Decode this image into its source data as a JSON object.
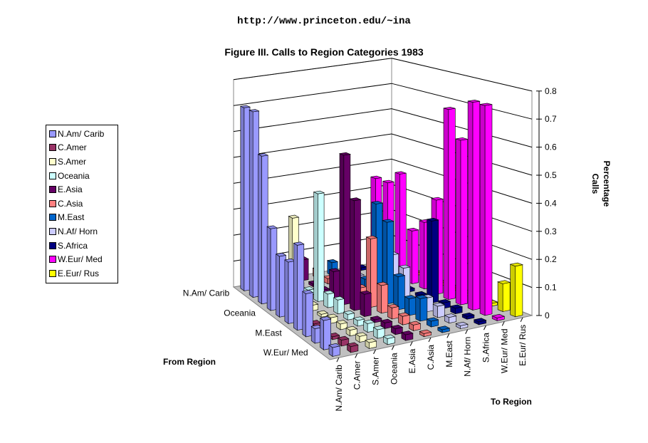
{
  "header": {
    "url": "http://www.princeton.edu/~ina"
  },
  "chart_data": {
    "type": "bar3d",
    "title": "Figure III. Calls to Region Categories 1983",
    "xlabel": "To Region",
    "depth_label": "From Region",
    "ylabel": "Percentage Calls",
    "ylim": [
      0,
      0.8
    ],
    "yticks": [
      "0",
      "0.1",
      "0.2",
      "0.3",
      "0.4",
      "0.5",
      "0.6",
      "0.7",
      "0.8"
    ],
    "categories": [
      "N.Am/ Carib",
      "C.Amer",
      "S.Amer",
      "Oceania",
      "E.Asia",
      "C.Asia",
      "M.East",
      "N.Af/ Horn",
      "S.Africa",
      "W.Eur/ Med",
      "E.Eur/ Rus"
    ],
    "depth_tick_labels": [
      "N.Am/ Carib",
      "Oceania",
      "M.East",
      "W.Eur/ Med"
    ],
    "legend": [
      "N.Am/ Carib",
      "C.Amer",
      "S.Amer",
      "Oceania",
      "E.Asia",
      "C.Asia",
      "M.East",
      "N.Af/ Horn",
      "S.Africa",
      "W.Eur/ Med",
      "E.Eur/ Rus"
    ],
    "colors": [
      "#9999FF",
      "#993366",
      "#FFFFCC",
      "#CCFFFF",
      "#660066",
      "#FF8080",
      "#0066CC",
      "#CCCCFF",
      "#000080",
      "#FF00FF",
      "#FFFF00"
    ],
    "rows_from": [
      "N.Am/ Carib",
      "C.Amer",
      "S.Amer",
      "Oceania",
      "E.Asia",
      "C.Asia",
      "M.East",
      "N.Af/ Horn",
      "S.Africa",
      "W.Eur/ Med",
      "E.Eur/ Rus"
    ],
    "values": [
      [
        0.7,
        0.01,
        0.01,
        0.01,
        0.08,
        0.03,
        0.05,
        0.01,
        0.01,
        0.35,
        0.01
      ],
      [
        0.7,
        0.18,
        0.01,
        0.02,
        0.01,
        0.02,
        0.02,
        0.01,
        0.01,
        0.35,
        0.01
      ],
      [
        0.55,
        0.01,
        0.3,
        0.02,
        0.01,
        0.01,
        0.04,
        0.02,
        0.01,
        0.4,
        0.01
      ],
      [
        0.3,
        0.01,
        0.02,
        0.4,
        0.1,
        0.02,
        0.05,
        0.03,
        0.01,
        0.2,
        0.01
      ],
      [
        0.22,
        0.01,
        0.02,
        0.05,
        0.55,
        0.05,
        0.35,
        0.15,
        0.01,
        0.25,
        0.01
      ],
      [
        0.22,
        0.01,
        0.01,
        0.05,
        0.4,
        0.25,
        0.3,
        0.12,
        0.01,
        0.35,
        0.01
      ],
      [
        0.3,
        0.01,
        0.02,
        0.02,
        0.08,
        0.1,
        0.12,
        0.02,
        0.3,
        0.7,
        0.01
      ],
      [
        0.15,
        0.01,
        0.02,
        0.02,
        0.01,
        0.04,
        0.06,
        0.05,
        0.02,
        0.6,
        0.01
      ],
      [
        0.05,
        0.01,
        0.02,
        0.03,
        0.02,
        0.03,
        0.08,
        0.04,
        0.02,
        0.75,
        0.01
      ],
      [
        0.1,
        0.02,
        0.02,
        0.03,
        0.02,
        0.02,
        0.02,
        0.02,
        0.01,
        0.75,
        0.1
      ],
      [
        0.03,
        0.02,
        0.02,
        0.02,
        0.02,
        0.01,
        0.01,
        0.01,
        0.01,
        0.01,
        0.18
      ]
    ]
  }
}
